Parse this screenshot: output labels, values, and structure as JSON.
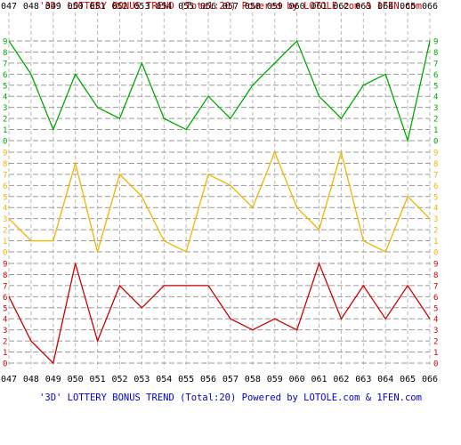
{
  "header": {
    "title": "'3D' LOTTERY BONUS TREND (Total:20)  Powered by LOTOLE.com & 1FEN.com"
  },
  "footer": {
    "title": "'3D' LOTTERY BONUS TREND (Total:20)  Powered by LOTOLE.com & 1FEN.com"
  },
  "chart_data": {
    "type": "line",
    "title": "'3D' LOTTERY BONUS TREND (Total:20)  Powered by LOTOLE.com & 1FEN.com",
    "categories": [
      "047",
      "048",
      "049",
      "050",
      "051",
      "052",
      "053",
      "054",
      "055",
      "056",
      "057",
      "058",
      "059",
      "060",
      "061",
      "062",
      "063",
      "064",
      "065",
      "066"
    ],
    "digit_ticks": [
      "0",
      "1",
      "2",
      "3",
      "4",
      "5",
      "6",
      "7",
      "8",
      "9"
    ],
    "ylim": [
      0,
      9
    ],
    "grid": true,
    "series": [
      {
        "color": "#00aa00",
        "values": [
          9,
          6,
          1,
          6,
          3,
          2,
          7,
          2,
          1,
          4,
          2,
          5,
          7,
          9,
          4,
          2,
          5,
          6,
          0,
          9
        ]
      },
      {
        "color": "#f0b400",
        "values": [
          3,
          1,
          1,
          8,
          0,
          7,
          5,
          1,
          0,
          7,
          6,
          4,
          9,
          4,
          2,
          9,
          1,
          0,
          5,
          3
        ]
      },
      {
        "color": "#cc0000",
        "values": [
          6,
          2,
          0,
          9,
          2,
          7,
          5,
          7,
          7,
          7,
          4,
          3,
          4,
          3,
          9,
          4,
          7,
          4,
          7,
          4
        ]
      }
    ]
  }
}
